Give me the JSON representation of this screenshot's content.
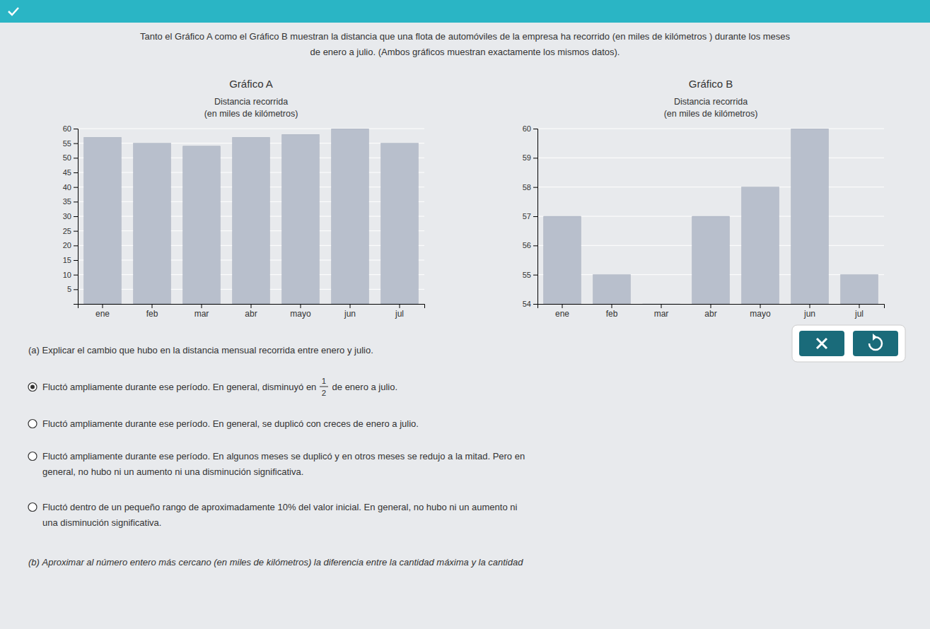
{
  "chart_data": [
    {
      "type": "bar",
      "title": "Gráfico A",
      "ylabel": "Distancia recorrida\n(en miles de kilómetros)",
      "categories": [
        "ene",
        "feb",
        "mar",
        "abr",
        "mayo",
        "jun",
        "jul"
      ],
      "values": [
        57,
        55,
        54,
        57,
        58,
        60,
        55
      ],
      "color": "#b8bfcc",
      "ylim": [
        0,
        60
      ],
      "yticks": [
        5,
        10,
        15,
        20,
        25,
        30,
        35,
        40,
        45,
        50,
        55,
        60
      ],
      "grid": true
    },
    {
      "type": "bar",
      "title": "Gráfico B",
      "ylabel": "Distancia recorrida\n(en miles de kilómetros)",
      "categories": [
        "ene",
        "feb",
        "mar",
        "abr",
        "mayo",
        "jun",
        "jul"
      ],
      "values": [
        57,
        55,
        54,
        57,
        58,
        60,
        55
      ],
      "color": "#b8bfcc",
      "ylim": [
        54,
        60
      ],
      "yticks": [
        54,
        55,
        56,
        57,
        58,
        59,
        60
      ],
      "grid": true
    }
  ],
  "header": [
    "Tanto el Gráfico A como el Gráfico B muestran la distancia que una flota de automóviles de la empresa ha recorrido (en miles de kilómetros ) durante los meses",
    "de enero a julio. (Ambos gráficos muestran exactamente los mismos datos)."
  ],
  "question": "(a) Explicar el cambio que hubo en la distancia mensual recorrida entre enero y julio.",
  "answers": [
    {
      "text_before": "Fluctó ampliamente durante ese período. En general, disminuyó en ",
      "fraction": {
        "numerator": 1,
        "denominator": 2
      },
      "text_after": " de enero a julio.",
      "selected": true
    },
    {
      "lines": [
        "Fluctó ampliamente durante ese período. En general, se duplicó con creces de enero a julio."
      ],
      "selected": false
    },
    {
      "lines": [
        "Fluctó ampliamente durante ese período. En algunos meses se duplicó y en otros meses se redujo a la mitad. Pero en",
        "general, no hubo ni un aumento ni una disminución significativa."
      ],
      "selected": false
    },
    {
      "lines": [
        "Fluctó dentro de un pequeño rango de aproximadamente 10% del valor inicial. En general, no hubo ni un aumento ni",
        "una disminución significativa."
      ],
      "selected": false
    }
  ],
  "footer": "(b) Aproximar al número entero más cercano (en miles de kilómetros) la diferencia entre la cantidad máxima y la cantidad"
}
